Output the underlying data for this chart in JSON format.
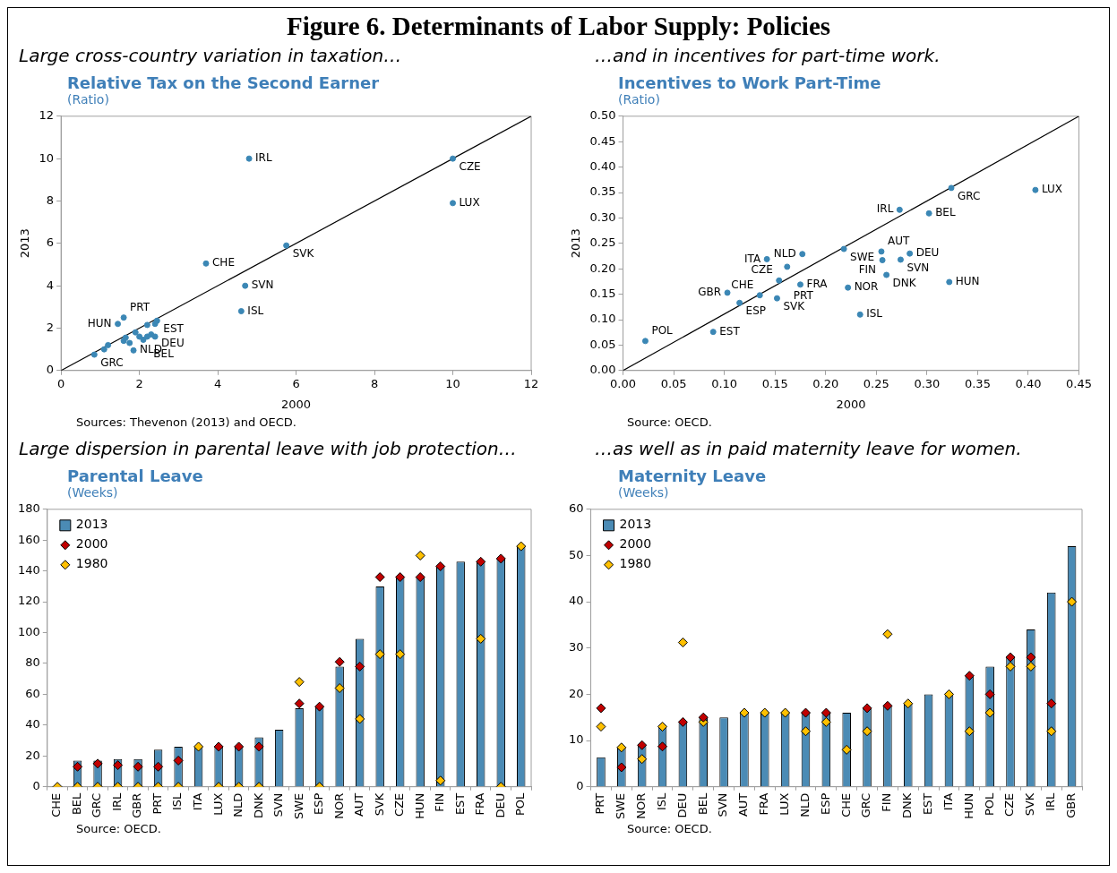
{
  "chart_data": [
    {
      "type": "scatter",
      "title": "Relative Tax on the Second Earner",
      "subtitle": "(Ratio)",
      "xlabel": "2000",
      "ylabel": "2013",
      "marker": "circle",
      "xlim": [
        0,
        12
      ],
      "ylim": [
        0,
        12
      ],
      "xticks": [
        0,
        2,
        4,
        6,
        8,
        10,
        12
      ],
      "yticks": [
        0,
        2,
        4,
        6,
        8,
        10,
        12
      ],
      "series": [
        {
          "color": "#3b87b5",
          "x": [
            4.8,
            10.0,
            10.0,
            5.75,
            3.7,
            4.7,
            4.6,
            1.6,
            1.45,
            2.45,
            2.2,
            2.4,
            0.85,
            1.85,
            1.2,
            1.1,
            1.6,
            1.65,
            1.9,
            2.0,
            2.2,
            2.3,
            2.4,
            1.75,
            2.1
          ],
          "values": [
            10.0,
            10.0,
            7.9,
            5.9,
            5.05,
            4.0,
            2.8,
            2.5,
            2.2,
            2.35,
            2.15,
            2.2,
            0.75,
            0.95,
            1.2,
            1.0,
            1.4,
            1.55,
            1.8,
            1.6,
            1.6,
            1.7,
            1.6,
            1.3,
            1.45
          ]
        },
        {
          "type": "line",
          "marker": "none",
          "color": "#000000",
          "x": [
            0,
            12
          ],
          "values": [
            0,
            12
          ]
        }
      ],
      "annotations": [
        "Figure 6. Determinants of Labor Supply: Policies",
        "Large cross-country variation in taxation…",
        {
          "text": "IRL",
          "x": 4.8,
          "y": 10.0
        },
        {
          "text": "CZE",
          "x": 10.0,
          "y": 10.0
        },
        {
          "text": "LUX",
          "x": 10.0,
          "y": 7.9
        },
        {
          "text": "SVK",
          "x": 5.75,
          "y": 5.9
        },
        {
          "text": "CHE",
          "x": 3.7,
          "y": 5.05
        },
        {
          "text": "SVN",
          "x": 4.7,
          "y": 4.0
        },
        {
          "text": "ISL",
          "x": 4.6,
          "y": 2.8
        },
        {
          "text": "PRT",
          "x": 1.6,
          "y": 2.5
        },
        {
          "text": "HUN",
          "x": 1.45,
          "y": 2.2
        },
        {
          "text": "EST",
          "x": 2.45,
          "y": 2.35
        },
        {
          "text": "BEL",
          "x": 2.2,
          "y": 2.15
        },
        {
          "text": "DEU",
          "x": 2.4,
          "y": 2.2
        },
        {
          "text": "GRC",
          "x": 0.85,
          "y": 0.75
        },
        {
          "text": "NLD",
          "x": 1.85,
          "y": 0.95
        },
        "Sources: Thevenon (2013) and OECD."
      ]
    },
    {
      "type": "scatter",
      "title": "Incentives to Work Part-Time",
      "subtitle": "(Ratio)",
      "xlabel": "2000",
      "ylabel": "2013",
      "marker": "circle",
      "xlim": [
        0,
        0.45
      ],
      "ylim": [
        0,
        0.5
      ],
      "xticks": [
        {
          "value": 0,
          "label": "0.00"
        },
        {
          "value": 0.05,
          "label": "0.05"
        },
        {
          "value": 0.1,
          "label": "0.10"
        },
        {
          "value": 0.15,
          "label": "0.15"
        },
        {
          "value": 0.2,
          "label": "0.20"
        },
        {
          "value": 0.25,
          "label": "0.25"
        },
        {
          "value": 0.3,
          "label": "0.30"
        },
        {
          "value": 0.35,
          "label": "0.35"
        },
        {
          "value": 0.4,
          "label": "0.40"
        },
        {
          "value": 0.45,
          "label": "0.45"
        }
      ],
      "yticks": [
        {
          "value": 0,
          "label": "0.00"
        },
        {
          "value": 0.05,
          "label": "0.05"
        },
        {
          "value": 0.1,
          "label": "0.10"
        },
        {
          "value": 0.15,
          "label": "0.15"
        },
        {
          "value": 0.2,
          "label": "0.20"
        },
        {
          "value": 0.25,
          "label": "0.25"
        },
        {
          "value": 0.3,
          "label": "0.30"
        },
        {
          "value": 0.35,
          "label": "0.35"
        },
        {
          "value": 0.4,
          "label": "0.40"
        },
        {
          "value": 0.45,
          "label": "0.45"
        },
        {
          "value": 0.5,
          "label": "0.50"
        }
      ],
      "series": [
        {
          "color": "#3b87b5",
          "x": [
            0.324,
            0.407,
            0.273,
            0.302,
            0.218,
            0.255,
            0.283,
            0.256,
            0.274,
            0.26,
            0.322,
            0.222,
            0.234,
            0.142,
            0.177,
            0.162,
            0.154,
            0.175,
            0.103,
            0.135,
            0.152,
            0.115,
            0.089,
            0.022
          ],
          "values": [
            0.359,
            0.355,
            0.316,
            0.309,
            0.239,
            0.234,
            0.23,
            0.217,
            0.218,
            0.188,
            0.174,
            0.163,
            0.11,
            0.219,
            0.229,
            0.204,
            0.177,
            0.169,
            0.153,
            0.148,
            0.142,
            0.133,
            0.076,
            0.058
          ]
        },
        {
          "type": "line",
          "marker": "none",
          "color": "#000000",
          "x": [
            0,
            0.45
          ],
          "values": [
            0,
            0.5
          ]
        }
      ],
      "annotations": [
        "…and in incentives for part-time work.",
        {
          "text": "GRC",
          "x": 0.324,
          "y": 0.359
        },
        {
          "text": "LUX",
          "x": 0.407,
          "y": 0.355
        },
        {
          "text": "IRL",
          "x": 0.273,
          "y": 0.316
        },
        {
          "text": "BEL",
          "x": 0.302,
          "y": 0.309
        },
        {
          "text": "SWE",
          "x": 0.218,
          "y": 0.239
        },
        {
          "text": "AUT",
          "x": 0.255,
          "y": 0.234
        },
        {
          "text": "DEU",
          "x": 0.283,
          "y": 0.23
        },
        {
          "text": "FIN",
          "x": 0.256,
          "y": 0.217
        },
        {
          "text": "SVN",
          "x": 0.274,
          "y": 0.218
        },
        {
          "text": "DNK",
          "x": 0.26,
          "y": 0.188
        },
        {
          "text": "HUN",
          "x": 0.322,
          "y": 0.174
        },
        {
          "text": "NOR",
          "x": 0.222,
          "y": 0.163
        },
        {
          "text": "ISL",
          "x": 0.234,
          "y": 0.11
        },
        {
          "text": "ITA",
          "x": 0.142,
          "y": 0.219
        },
        {
          "text": "NLD",
          "x": 0.177,
          "y": 0.229
        },
        {
          "text": "PRT",
          "x": 0.162,
          "y": 0.204
        },
        {
          "text": "CZE",
          "x": 0.154,
          "y": 0.177
        },
        {
          "text": "FRA",
          "x": 0.175,
          "y": 0.169
        },
        {
          "text": "GBR",
          "x": 0.103,
          "y": 0.153
        },
        {
          "text": "CHE",
          "x": 0.135,
          "y": 0.148
        },
        {
          "text": "SVK",
          "x": 0.152,
          "y": 0.142
        },
        {
          "text": "ESP",
          "x": 0.115,
          "y": 0.133
        },
        {
          "text": "EST",
          "x": 0.089,
          "y": 0.076
        },
        {
          "text": "POL",
          "x": 0.022,
          "y": 0.058
        },
        "Source: OECD."
      ]
    },
    {
      "type": "bar",
      "title": "Parental Leave",
      "subtitle": "(Weeks)",
      "legend": "top left",
      "marker": "diamond",
      "categories": [
        "CHE",
        "BEL",
        "GRC",
        "IRL",
        "GBR",
        "PRT",
        "ISL",
        "ITA",
        "LUX",
        "NLD",
        "DNK",
        "SVN",
        "SWE",
        "ESP",
        "NOR",
        "AUT",
        "SVK",
        "CZE",
        "HUN",
        "FIN",
        "EST",
        "FRA",
        "DEU",
        "POL"
      ],
      "ylim": [
        0,
        180
      ],
      "yticks": [
        0,
        20,
        40,
        60,
        80,
        100,
        120,
        140,
        160,
        180
      ],
      "series": [
        {
          "name": "2013",
          "type": "bar",
          "color": "#4b8bb5",
          "values": [
            0,
            17,
            17,
            18,
            18,
            24,
            26,
            26,
            26,
            26,
            32,
            37,
            51,
            52,
            78,
            96,
            130,
            136,
            136,
            143,
            146,
            146,
            148,
            156
          ]
        },
        {
          "name": "2000",
          "type": "scatter",
          "color": "#c00000",
          "x": [
            "CHE",
            "BEL",
            "GRC",
            "IRL",
            "GBR",
            "PRT",
            "ISL",
            "ITA",
            "LUX",
            "NLD",
            "DNK",
            "SVN",
            "SWE",
            "ESP",
            "NOR",
            "AUT",
            "SVK",
            "CZE",
            "HUN",
            "FIN",
            "EST",
            "FRA",
            "DEU",
            "POL"
          ],
          "values": [
            null,
            13,
            15,
            14,
            13,
            13,
            17,
            null,
            26,
            26,
            26,
            null,
            54,
            52,
            81,
            78,
            136,
            136,
            136,
            143,
            null,
            146,
            148,
            null
          ]
        },
        {
          "name": "1980",
          "type": "scatter",
          "color": "#ffc000",
          "x": [
            "CHE",
            "BEL",
            "GRC",
            "IRL",
            "GBR",
            "PRT",
            "ISL",
            "ITA",
            "LUX",
            "NLD",
            "DNK",
            "SVN",
            "SWE",
            "ESP",
            "NOR",
            "AUT",
            "SVK",
            "CZE",
            "HUN",
            "FIN",
            "EST",
            "FRA",
            "DEU",
            "POL"
          ],
          "values": [
            0,
            0,
            0,
            0,
            0,
            0,
            0,
            26,
            0,
            0,
            0,
            null,
            68,
            0,
            64,
            44,
            86,
            86,
            150,
            4,
            null,
            96,
            0,
            156
          ]
        }
      ],
      "annotations": [
        "Large dispersion in parental leave with job protection…",
        "Source: OECD."
      ]
    },
    {
      "type": "bar",
      "title": "Maternity Leave",
      "subtitle": "(Weeks)",
      "legend": "top left",
      "marker": "diamond",
      "categories": [
        "PRT",
        "SWE",
        "NOR",
        "ISL",
        "DEU",
        "BEL",
        "SVN",
        "AUT",
        "FRA",
        "LUX",
        "NLD",
        "ESP",
        "CHE",
        "GRC",
        "FIN",
        "DNK",
        "EST",
        "ITA",
        "HUN",
        "POL",
        "CZE",
        "SVK",
        "IRL",
        "GBR"
      ],
      "ylim": [
        0,
        60
      ],
      "yticks": [
        0,
        10,
        20,
        30,
        40,
        50,
        60
      ],
      "series": [
        {
          "name": "2013",
          "type": "bar",
          "color": "#4b8bb5",
          "values": [
            6.4,
            8.5,
            9,
            13,
            14,
            15,
            15,
            16,
            16,
            16,
            16,
            16,
            16,
            17,
            17.5,
            18,
            20,
            20,
            24,
            26,
            28,
            34,
            42,
            52
          ]
        },
        {
          "name": "2000",
          "type": "scatter",
          "color": "#c00000",
          "x": [
            "PRT",
            "SWE",
            "NOR",
            "ISL",
            "DEU",
            "BEL",
            "SVN",
            "AUT",
            "FRA",
            "LUX",
            "NLD",
            "ESP",
            "CHE",
            "GRC",
            "FIN",
            "DNK",
            "EST",
            "ITA",
            "HUN",
            "POL",
            "CZE",
            "SVK",
            "IRL",
            "GBR"
          ],
          "values": [
            17,
            4.2,
            9,
            8.7,
            14,
            15,
            null,
            null,
            null,
            null,
            16,
            16,
            null,
            17,
            17.5,
            null,
            null,
            null,
            24,
            20,
            28,
            28,
            18,
            null
          ]
        },
        {
          "name": "1980",
          "type": "scatter",
          "color": "#ffc000",
          "x": [
            "PRT",
            "SWE",
            "NOR",
            "ISL",
            "DEU",
            "BEL",
            "SVN",
            "AUT",
            "FRA",
            "LUX",
            "NLD",
            "ESP",
            "CHE",
            "GRC",
            "FIN",
            "DNK",
            "EST",
            "ITA",
            "HUN",
            "POL",
            "CZE",
            "SVK",
            "IRL",
            "GBR"
          ],
          "values": [
            13,
            8.5,
            6,
            13,
            31.2,
            14,
            null,
            16,
            16,
            16,
            12,
            14,
            8,
            12,
            33,
            18,
            null,
            20,
            12,
            16,
            26,
            26,
            12,
            40
          ]
        }
      ],
      "annotations": [
        "…as well as in paid maternity leave for women.",
        "Source: OECD."
      ]
    }
  ]
}
